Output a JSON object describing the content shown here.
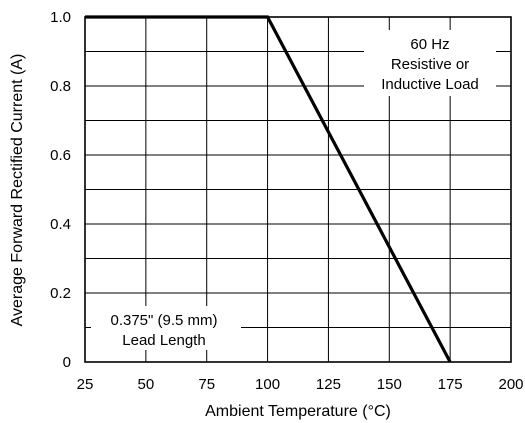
{
  "chart_data": {
    "type": "line",
    "xlabel": "Ambient Temperature (°C)",
    "ylabel": "Average Forward Rectified Current (A)",
    "xlim": [
      25,
      200
    ],
    "ylim": [
      0,
      1.0
    ],
    "x_ticks": [
      "25",
      "50",
      "75",
      "100",
      "125",
      "150",
      "175",
      "200"
    ],
    "y_ticks": [
      "0",
      "0.2",
      "0.4",
      "0.6",
      "0.8",
      "1.0"
    ],
    "grid": true,
    "series": [
      {
        "x": [
          25,
          100,
          175
        ],
        "y": [
          1.0,
          1.0,
          0
        ]
      }
    ],
    "annotations": [
      {
        "lines": [
          "60 Hz",
          "Resistive or",
          "Inductive Load"
        ]
      },
      {
        "lines": [
          "0.375\" (9.5 mm)",
          "Lead Length"
        ]
      }
    ]
  }
}
